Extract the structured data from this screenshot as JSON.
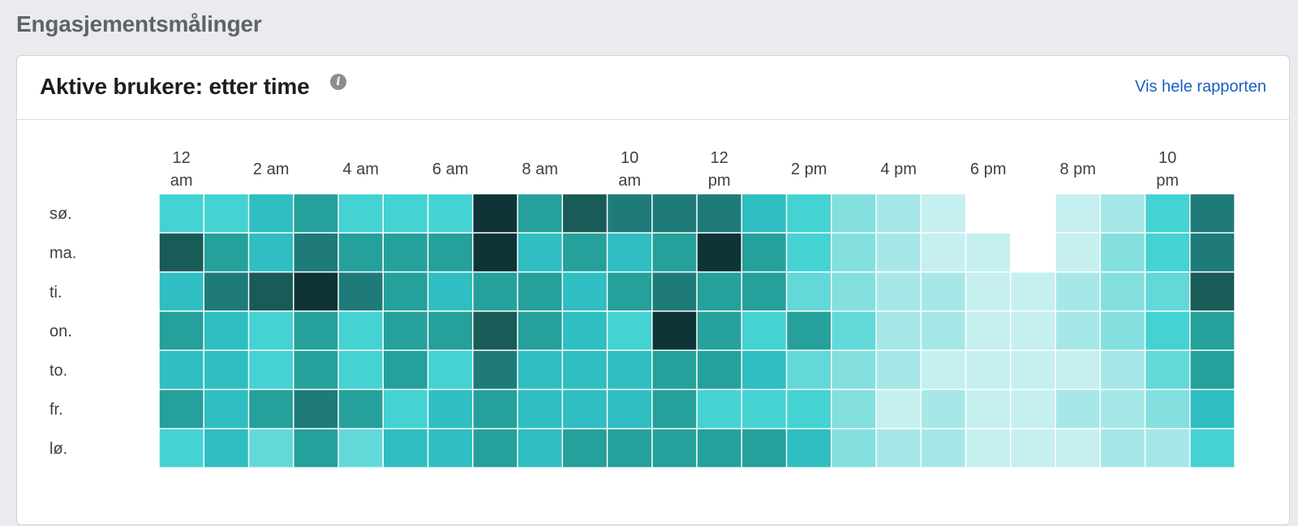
{
  "section_title": "Engasjementsmålinger",
  "card": {
    "title": "Aktive brukere: etter time",
    "info_icon": "info-icon",
    "report_link": "Vis hele rapporten"
  },
  "chart_data": {
    "type": "heatmap",
    "x_labels": [
      [
        "12",
        "am"
      ],
      [],
      [
        "2 am"
      ],
      [],
      [
        "4 am"
      ],
      [],
      [
        "6 am"
      ],
      [],
      [
        "8 am"
      ],
      [],
      [
        "10",
        "am"
      ],
      [],
      [
        "12",
        "pm"
      ],
      [],
      [
        "2 pm"
      ],
      [],
      [
        "4 pm"
      ],
      [],
      [
        "6 pm"
      ],
      [],
      [
        "8 pm"
      ],
      [],
      [
        "10",
        "pm"
      ],
      []
    ],
    "y_labels": [
      "sø.",
      "ma.",
      "ti.",
      "on.",
      "to.",
      "fr.",
      "lø."
    ],
    "scale_max": 9,
    "color_scale": [
      "#c6eff0",
      "#a5e8e7",
      "#84dfdf",
      "#63d8d9",
      "#44d2d3",
      "#2fbec1",
      "#25a09b",
      "#1e7b7a",
      "#195b57",
      "#0e3437"
    ],
    "values": [
      [
        4,
        4,
        5,
        6,
        4,
        4,
        4,
        9,
        6,
        8,
        7,
        7,
        7,
        5,
        4,
        2,
        1,
        0,
        null,
        null,
        0,
        1,
        4,
        7
      ],
      [
        8,
        6,
        5,
        7,
        6,
        6,
        6,
        9,
        5,
        6,
        5,
        6,
        9,
        6,
        4,
        2,
        1,
        0,
        0,
        null,
        0,
        2,
        4,
        7
      ],
      [
        5,
        7,
        8,
        9,
        7,
        6,
        5,
        6,
        6,
        5,
        6,
        7,
        6,
        6,
        3,
        2,
        1,
        1,
        0,
        0,
        1,
        2,
        3,
        8
      ],
      [
        6,
        5,
        4,
        6,
        4,
        6,
        6,
        8,
        6,
        5,
        4,
        9,
        6,
        4,
        6,
        3,
        1,
        1,
        0,
        0,
        1,
        2,
        4,
        6
      ],
      [
        5,
        5,
        4,
        6,
        4,
        6,
        4,
        7,
        5,
        5,
        5,
        6,
        6,
        5,
        3,
        2,
        1,
        0,
        0,
        0,
        0,
        1,
        3,
        6
      ],
      [
        6,
        5,
        6,
        7,
        6,
        4,
        5,
        6,
        5,
        5,
        5,
        6,
        4,
        4,
        4,
        2,
        0,
        1,
        0,
        0,
        1,
        1,
        2,
        5
      ],
      [
        4,
        5,
        3,
        6,
        3,
        5,
        5,
        6,
        5,
        6,
        6,
        6,
        6,
        6,
        5,
        2,
        1,
        1,
        0,
        0,
        0,
        1,
        1,
        4
      ]
    ]
  }
}
